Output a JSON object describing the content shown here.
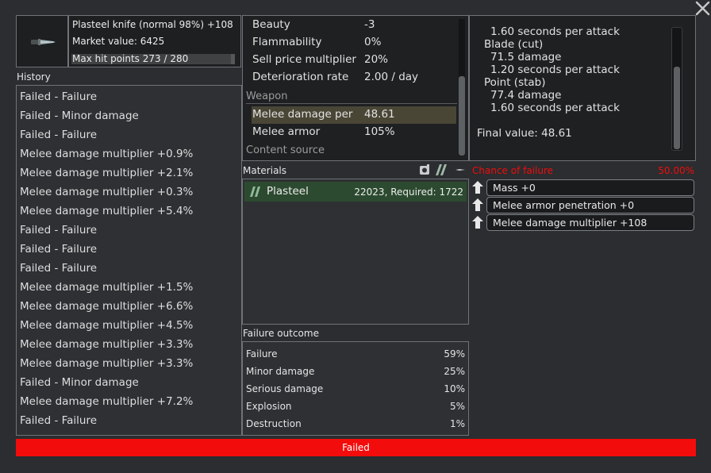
{
  "item": {
    "name": "Plasteel knife (normal 98%) +108",
    "market_value": "Market value: 6425",
    "hit_points": "Max hit points 273 / 280",
    "hit_points_fraction": 0.975,
    "icon": "knife-icon"
  },
  "history": {
    "title": "History",
    "items": [
      "Failed - Failure",
      "Failed - Minor damage",
      "Failed - Failure",
      "Melee damage multiplier +0.9%",
      "Melee damage multiplier +2.1%",
      "Melee damage multiplier +0.3%",
      "Melee damage multiplier +5.4%",
      "Failed - Failure",
      "Failed - Failure",
      "Failed - Failure",
      "Melee damage multiplier +1.5%",
      "Melee damage multiplier +6.6%",
      "Melee damage multiplier +4.5%",
      "Melee damage multiplier +3.3%",
      "Melee damage multiplier +3.3%",
      "Failed - Minor damage",
      "Melee damage multiplier +7.2%",
      "Failed - Failure"
    ]
  },
  "stats": {
    "rows": [
      {
        "k": "Beauty",
        "v": "-3"
      },
      {
        "k": "Flammability",
        "v": "0%"
      },
      {
        "k": "Sell price multiplier",
        "v": "20%"
      },
      {
        "k": "Deterioration rate",
        "v": "2.00 / day"
      }
    ],
    "section_weapon": "Weapon",
    "weapon_rows": [
      {
        "k": "Melee damage per",
        "v": "48.61"
      },
      {
        "k": "Melee armor",
        "v": "105%"
      }
    ],
    "section_content": "Content source"
  },
  "explanation": {
    "lines": [
      "1.60 seconds per attack",
      "Blade (cut)",
      "71.5 damage",
      "1.20 seconds per attack",
      "Point (stab)",
      "77.4 damage",
      "1.60 seconds per attack"
    ],
    "final": "Final value: 48.61"
  },
  "materials": {
    "title": "Materials",
    "items": [
      {
        "name": "Plasteel",
        "amount": "22023, Required: 1722"
      }
    ]
  },
  "outcome": {
    "title": "Failure outcome",
    "rows": [
      {
        "k": "Failure",
        "v": "59%"
      },
      {
        "k": "Minor damage",
        "v": "25%"
      },
      {
        "k": "Serious damage",
        "v": "10%"
      },
      {
        "k": "Explosion",
        "v": "5%"
      },
      {
        "k": "Destruction",
        "v": "1%"
      }
    ]
  },
  "chance": {
    "label": "Chance of failure",
    "value": "50.00%",
    "modifiers": [
      "Mass +0",
      "Melee armor penetration +0",
      "Melee damage multiplier +108"
    ]
  },
  "status": {
    "text": "Failed",
    "color": "#f20c0c"
  },
  "colors": {
    "accent_red": "#f20c0c",
    "material_row": "#2c4a2f",
    "selected_row": "#4a4636"
  }
}
